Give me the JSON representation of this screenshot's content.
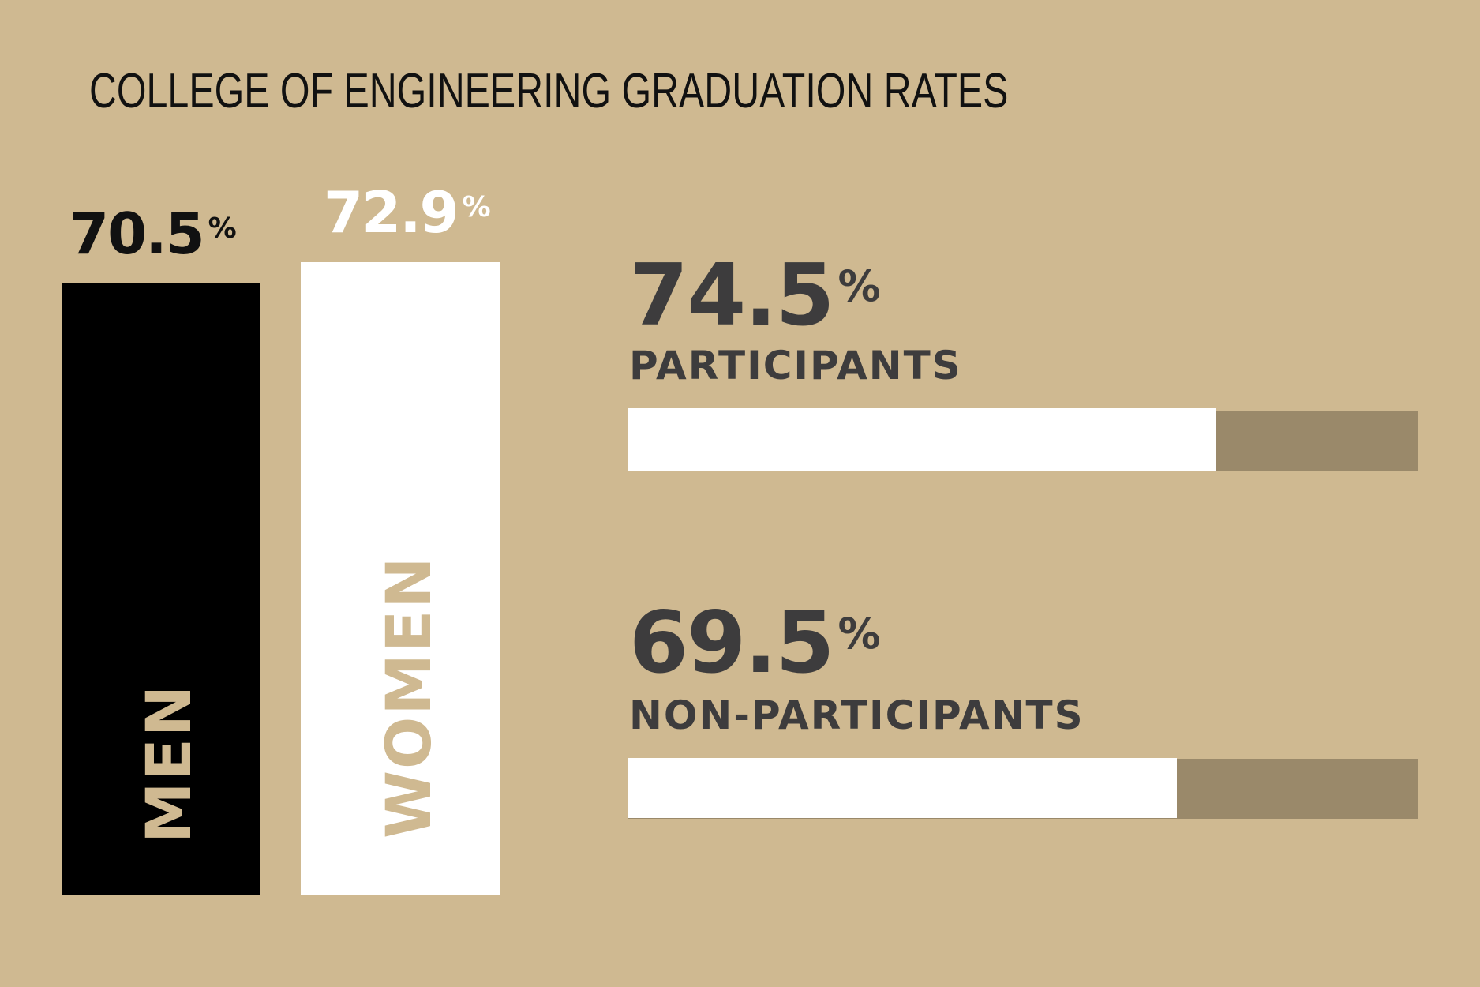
{
  "chart_data": [
    {
      "type": "bar",
      "title": "COLLEGE OF ENGINEERING GRADUATION RATES",
      "categories": [
        "MEN",
        "WOMEN"
      ],
      "values": [
        70.5,
        72.9
      ],
      "labels": [
        "70.5",
        "72.9"
      ],
      "unit": "%",
      "colors": [
        "#000000",
        "#FFFFFF"
      ]
    },
    {
      "type": "bar",
      "orientation": "horizontal",
      "categories": [
        "PARTICIPANTS",
        "NON-PARTICIPANTS"
      ],
      "values": [
        74.5,
        69.5
      ],
      "labels": [
        "74.5",
        "69.5"
      ],
      "unit": "%",
      "fill_color": "#FFFFFF",
      "track_color": "#9A896A"
    }
  ],
  "colors": {
    "background": "#CFB991",
    "text_dark": "#3D3C3D"
  }
}
